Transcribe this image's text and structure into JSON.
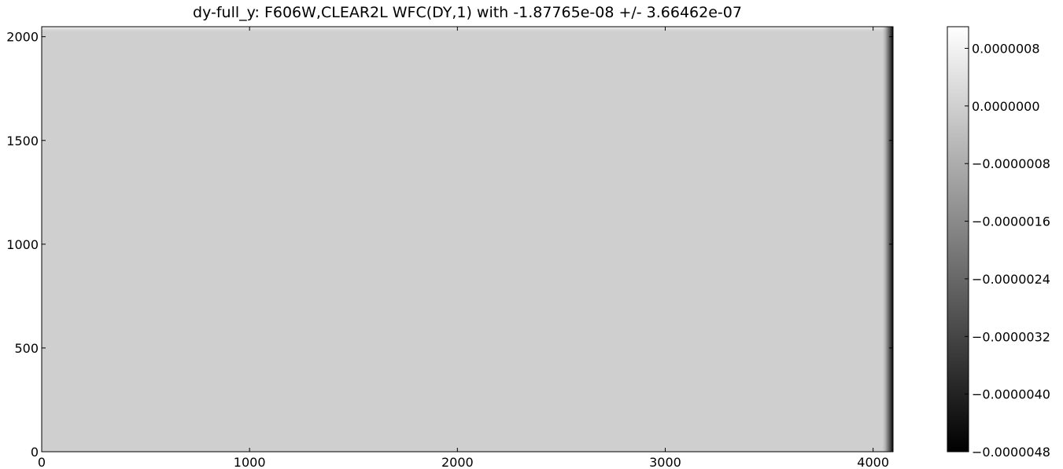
{
  "chart_data": {
    "type": "heatmap",
    "title": "dy-full_y: F606W,CLEAR2L WFC(DY,1) with -1.87765e-08 +/- 3.66462e-07",
    "colormap": "gray",
    "xlim": [
      0,
      4096
    ],
    "ylim": [
      0,
      2048
    ],
    "x_ticks": [
      0,
      1000,
      2000,
      3000,
      4000
    ],
    "x_tick_labels": [
      "0",
      "1000",
      "2000",
      "3000",
      "4000"
    ],
    "y_ticks": [
      0,
      500,
      1000,
      1500,
      2000
    ],
    "y_tick_labels": [
      "0",
      "500",
      "1000",
      "1500",
      "2000"
    ],
    "colorbar": {
      "range": [
        -4.8e-06,
        1.1e-06
      ],
      "ticks": [
        8e-07,
        0.0,
        -8e-07,
        -1.6e-06,
        -2.4e-06,
        -3.2e-06,
        -4e-06,
        -4.8e-06
      ],
      "tick_labels": [
        "0.0000008",
        "0.0000000",
        "−0.0000008",
        "−0.0000016",
        "−0.0000024",
        "−0.0000032",
        "−0.0000040",
        "−0.0000048"
      ]
    },
    "field": {
      "baseline_value": 0.0,
      "top_edge_value": 9e-07,
      "top_edge_rows": [
        2020,
        2048
      ],
      "right_edge_value": -4.8e-06,
      "right_edge_columns": [
        4040,
        4096
      ]
    }
  }
}
